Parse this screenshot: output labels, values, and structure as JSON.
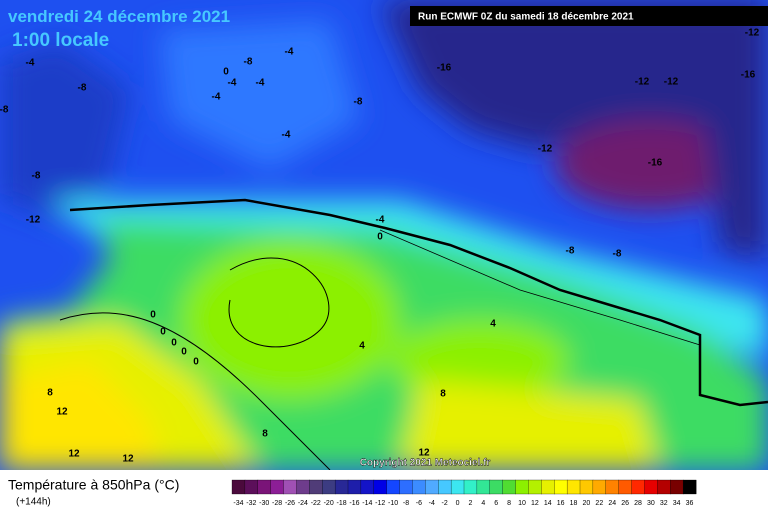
{
  "header": {
    "date": "vendredi 24 décembre 2021",
    "time": "1:00 locale",
    "run": "Run ECMWF 0Z du samedi 18 décembre 2021",
    "copyright": "Copyright 2021 Meteociel.fr"
  },
  "legend": {
    "title": "Température à 850hPa (°C)",
    "lead": "(+144h)",
    "ticks": [
      -34,
      -32,
      -30,
      -28,
      -26,
      -24,
      -22,
      -20,
      -18,
      -16,
      -14,
      -12,
      -10,
      -8,
      -6,
      -4,
      -2,
      0,
      2,
      4,
      6,
      8,
      10,
      12,
      14,
      16,
      18,
      20,
      22,
      24,
      26,
      28,
      30,
      32,
      34,
      36
    ],
    "colors": [
      "#4b0a3c",
      "#5c0f5a",
      "#7a1478",
      "#8c1e96",
      "#a050b4",
      "#6e3c8c",
      "#503c78",
      "#3c3c82",
      "#282896",
      "#1e1eaa",
      "#1414c8",
      "#0000e6",
      "#1446ff",
      "#2d6eff",
      "#3c8cff",
      "#50aaff",
      "#46c8ff",
      "#3ce6f0",
      "#32f0c8",
      "#32e696",
      "#3cdc64",
      "#50dc32",
      "#8cf000",
      "#b4f000",
      "#e6f000",
      "#ffff00",
      "#ffe600",
      "#ffc800",
      "#ffaa00",
      "#ff8200",
      "#ff5a00",
      "#ff2800",
      "#e60000",
      "#b40000",
      "#780000",
      "#000000"
    ]
  },
  "contour_labels": [
    "-12",
    "-4",
    "-4",
    "-8",
    "0",
    "-4",
    "-4",
    "-4",
    "-8",
    "-16",
    "-12",
    "-12",
    "-16",
    "-8",
    "-8",
    "-4",
    "-12",
    "-16",
    "-8",
    "-12",
    "-4",
    "0",
    "-8",
    "-8",
    "0",
    "0",
    "0",
    "0",
    "0",
    "4",
    "4",
    "8",
    "8",
    "12",
    "8",
    "12",
    "12",
    "12"
  ]
}
